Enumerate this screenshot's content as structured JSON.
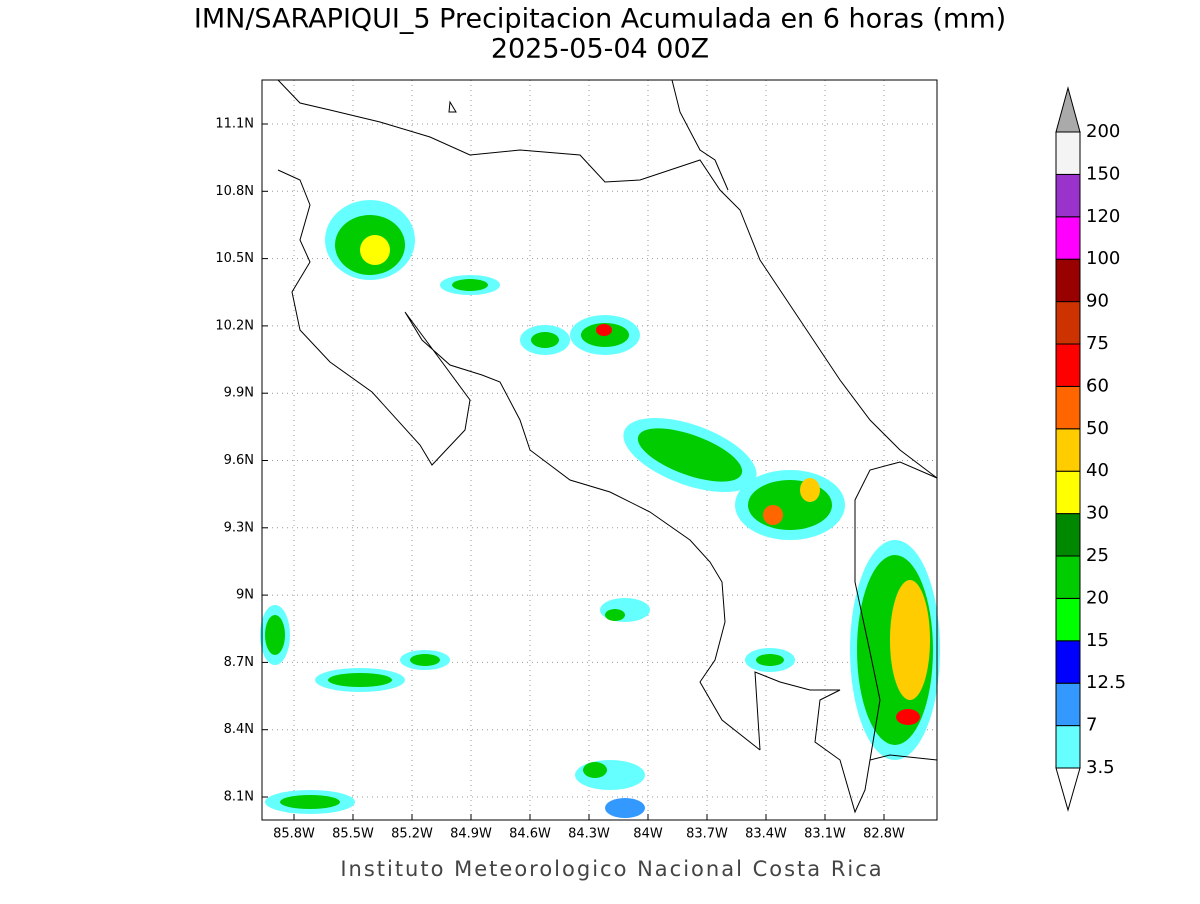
{
  "title": "IMN/SARAPIQUI_5 Precipitacion Acumulada en 6 horas (mm)",
  "subtitle": "2025-05-04 00Z",
  "map": {
    "lat_ticks": [
      {
        "value": 11.1,
        "label": "11.1N"
      },
      {
        "value": 10.8,
        "label": "10.8N"
      },
      {
        "value": 10.5,
        "label": "10.5N"
      },
      {
        "value": 10.2,
        "label": "10.2N"
      },
      {
        "value": 9.9,
        "label": "9.9N"
      },
      {
        "value": 9.6,
        "label": "9.6N"
      },
      {
        "value": 9.3,
        "label": "9.3N"
      },
      {
        "value": 9,
        "label": "9N"
      },
      {
        "value": 8.7,
        "label": "8.7N"
      },
      {
        "value": 8.4,
        "label": "8.4N"
      },
      {
        "value": 8.1,
        "label": "8.1N"
      }
    ],
    "lon_ticks": [
      {
        "value": -85.8,
        "label": "85.8W"
      },
      {
        "value": -85.5,
        "label": "85.5W"
      },
      {
        "value": -85.2,
        "label": "85.2W"
      },
      {
        "value": -84.9,
        "label": "84.9W"
      },
      {
        "value": -84.6,
        "label": "84.6W"
      },
      {
        "value": -84.3,
        "label": "84.3W"
      },
      {
        "value": -84,
        "label": "84W"
      },
      {
        "value": -83.7,
        "label": "83.7W"
      },
      {
        "value": -83.4,
        "label": "83.4W"
      },
      {
        "value": -83.1,
        "label": "83.1W"
      },
      {
        "value": -82.8,
        "label": "82.8W"
      }
    ]
  },
  "colorbar": {
    "levels": [
      3.5,
      7,
      12.5,
      15,
      20,
      25,
      30,
      40,
      50,
      60,
      75,
      90,
      100,
      120,
      150,
      200
    ],
    "colors": [
      "#66ffff",
      "#3399ff",
      "#0000ff",
      "#00ff00",
      "#00cc00",
      "#008800",
      "#ffff00",
      "#ffcc00",
      "#ff6600",
      "#ff0000",
      "#cc3300",
      "#990000",
      "#ff00ff",
      "#9933cc",
      "#f4f4f4"
    ],
    "below_color": "#ffffff",
    "above_color": "#aaaaaa"
  },
  "footer": "Instituto Meteorologico Nacional Costa Rica"
}
